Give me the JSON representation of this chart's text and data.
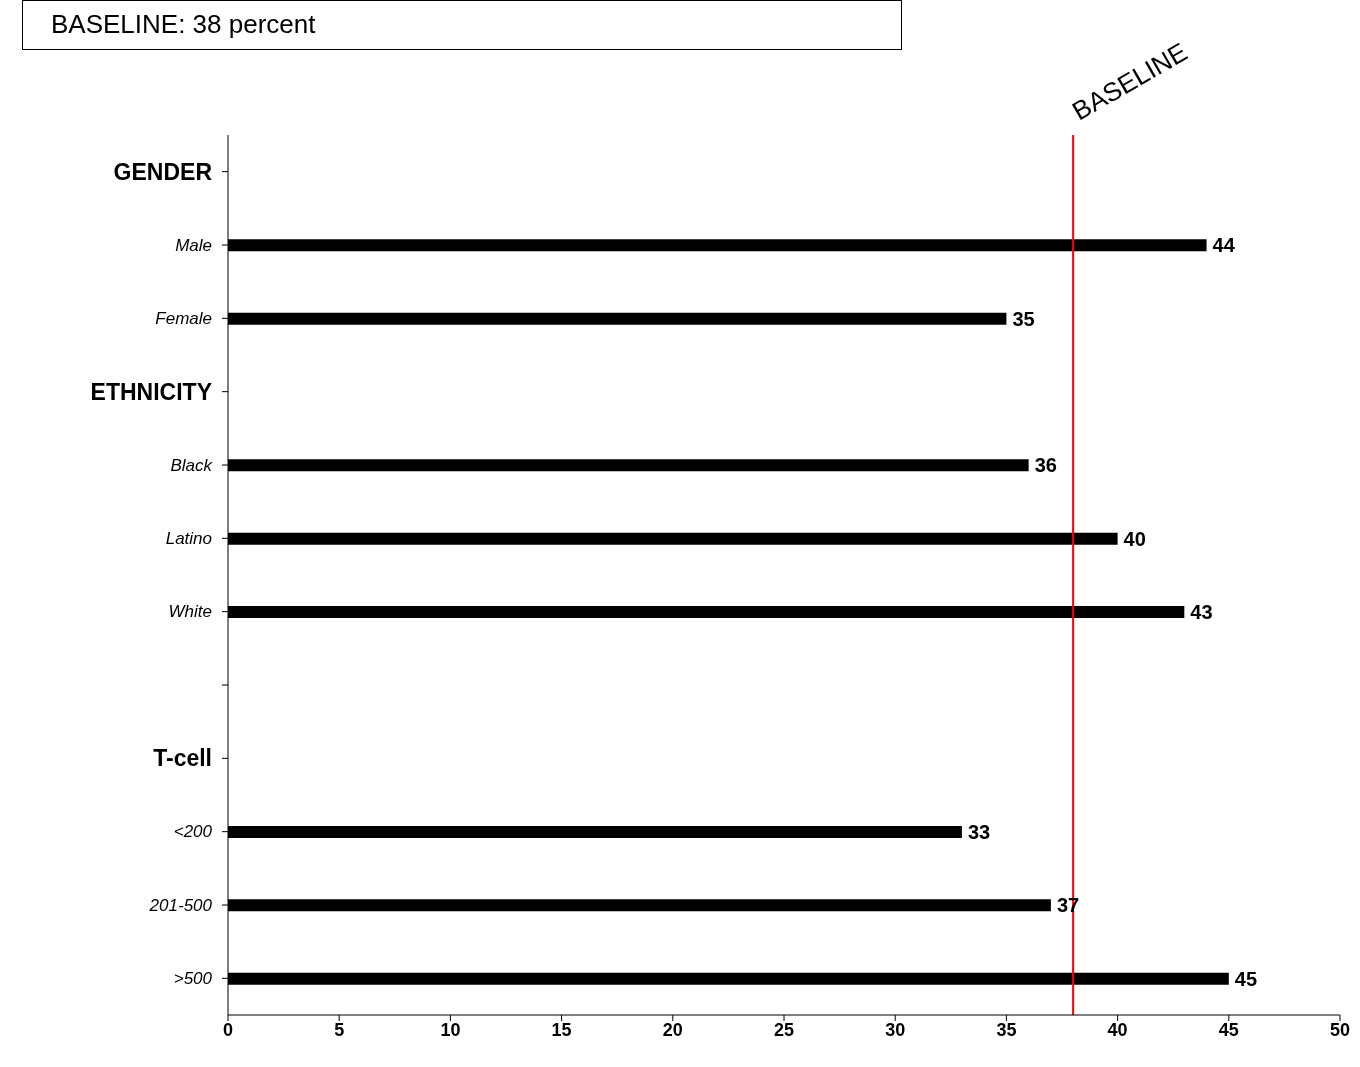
{
  "chart_data": {
    "type": "bar",
    "orientation": "horizontal",
    "categories": [
      "GENDER",
      "Male",
      "Female",
      "ETHNICITY",
      "Black",
      "Latino",
      "White",
      null,
      "T-cell",
      "<200",
      "201-500",
      ">500"
    ],
    "values": [
      null,
      44,
      35,
      null,
      36,
      40,
      43,
      null,
      null,
      33,
      37,
      45
    ],
    "color": "#000000",
    "xlim": [
      0,
      50
    ],
    "xticks": [
      0,
      5,
      10,
      15,
      20,
      25,
      30,
      35,
      40,
      45,
      50
    ],
    "data_labels": true,
    "ref_lines": [
      {
        "axis": "x",
        "value": 38,
        "label": "BASELINE",
        "color": "#ff0000"
      }
    ],
    "annotations": [
      "BASELINE: 38 percent"
    ]
  }
}
